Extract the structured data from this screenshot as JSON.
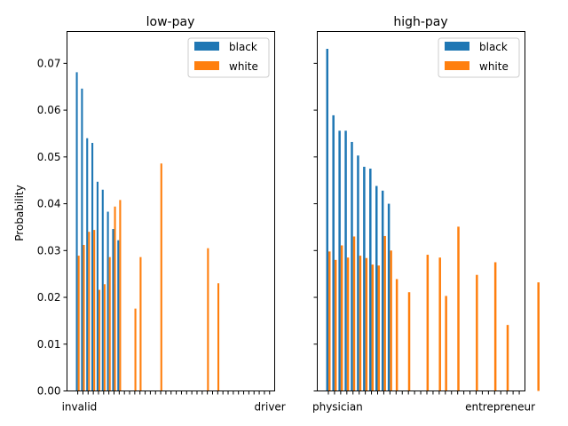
{
  "chart_data": [
    {
      "type": "bar",
      "title": "low-pay",
      "ylabel": "Probability",
      "xlabel": "",
      "ylim": [
        0,
        0.0768
      ],
      "yticks": [
        "0.00",
        "0.01",
        "0.02",
        "0.03",
        "0.04",
        "0.05",
        "0.06",
        "0.07"
      ],
      "legend_position": "top-right",
      "categories": [
        "invalid",
        "",
        "",
        "",
        "",
        "",
        "",
        "",
        "",
        "",
        "",
        "",
        "",
        "",
        "",
        "",
        "",
        "",
        "",
        "",
        "",
        "",
        "",
        "",
        "",
        "",
        "",
        "",
        "",
        "",
        "",
        "",
        "",
        "",
        "",
        "",
        "",
        "driver"
      ],
      "series": [
        {
          "name": "black",
          "color": "#1f77b4",
          "values": [
            0.0681,
            0.0646,
            0.054,
            0.053,
            0.0447,
            0.043,
            0.0383,
            0.0346,
            0.0322,
            0,
            0,
            0,
            0,
            0,
            0,
            0,
            0,
            0,
            0,
            0,
            0,
            0,
            0,
            0,
            0,
            0,
            0,
            0,
            0,
            0,
            0,
            0,
            0,
            0,
            0,
            0,
            0,
            0
          ]
        },
        {
          "name": "white",
          "color": "#ff7f0e",
          "values": [
            0.0289,
            0.0312,
            0.034,
            0.0344,
            0.0216,
            0.0228,
            0.0286,
            0.0394,
            0.0408,
            0,
            0,
            0,
            0,
            0,
            0,
            0,
            0,
            0,
            0,
            0,
            0,
            0,
            0,
            0,
            0,
            0,
            0,
            0,
            0,
            0,
            0,
            0,
            0,
            0,
            0,
            0,
            0,
            0
          ]
        }
      ],
      "extra_white_bars": [
        {
          "index": 11.3,
          "value": 0.0176
        },
        {
          "index": 12.3,
          "value": 0.0286
        },
        {
          "index": 16.3,
          "value": 0.0486
        },
        {
          "index": 25.3,
          "value": 0.0305
        },
        {
          "index": 27.3,
          "value": 0.023
        }
      ]
    },
    {
      "type": "bar",
      "title": "high-pay",
      "ylabel": "",
      "xlabel": "",
      "ylim": [
        0,
        0.0768
      ],
      "legend_position": "top-right",
      "categories": [
        "physician",
        "",
        "",
        "",
        "",
        "",
        "",
        "",
        "",
        "",
        "",
        "",
        "",
        "",
        "",
        "",
        "",
        "",
        "",
        "",
        "",
        "",
        "",
        "",
        "",
        "",
        "",
        "",
        "",
        "",
        "",
        "entrepreneur"
      ],
      "series": [
        {
          "name": "black",
          "color": "#1f77b4",
          "values": [
            0.0731,
            0.0589,
            0.0556,
            0.0556,
            0.0532,
            0.0503,
            0.0479,
            0.0475,
            0.0438,
            0.0428,
            0.04,
            0,
            0,
            0,
            0,
            0,
            0,
            0,
            0,
            0,
            0,
            0,
            0,
            0,
            0,
            0,
            0,
            0,
            0,
            0,
            0,
            0
          ]
        },
        {
          "name": "white",
          "color": "#ff7f0e",
          "values": [
            0.0298,
            0.028,
            0.0311,
            0.0285,
            0.033,
            0.0289,
            0.0284,
            0.027,
            0.0268,
            0.0331,
            0.03,
            0,
            0,
            0,
            0,
            0,
            0,
            0,
            0,
            0,
            0,
            0,
            0,
            0,
            0,
            0,
            0,
            0,
            0,
            0,
            0,
            0
          ]
        }
      ],
      "extra_white_bars": [
        {
          "index": 11.3,
          "value": 0.0239
        },
        {
          "index": 13.3,
          "value": 0.0211
        },
        {
          "index": 16.3,
          "value": 0.0291
        },
        {
          "index": 18.3,
          "value": 0.0285
        },
        {
          "index": 19.3,
          "value": 0.0203
        },
        {
          "index": 21.3,
          "value": 0.0351
        },
        {
          "index": 24.3,
          "value": 0.0248
        },
        {
          "index": 27.3,
          "value": 0.0275
        },
        {
          "index": 29.3,
          "value": 0.0141
        },
        {
          "index": 34.3,
          "value": 0.0232
        }
      ]
    }
  ]
}
